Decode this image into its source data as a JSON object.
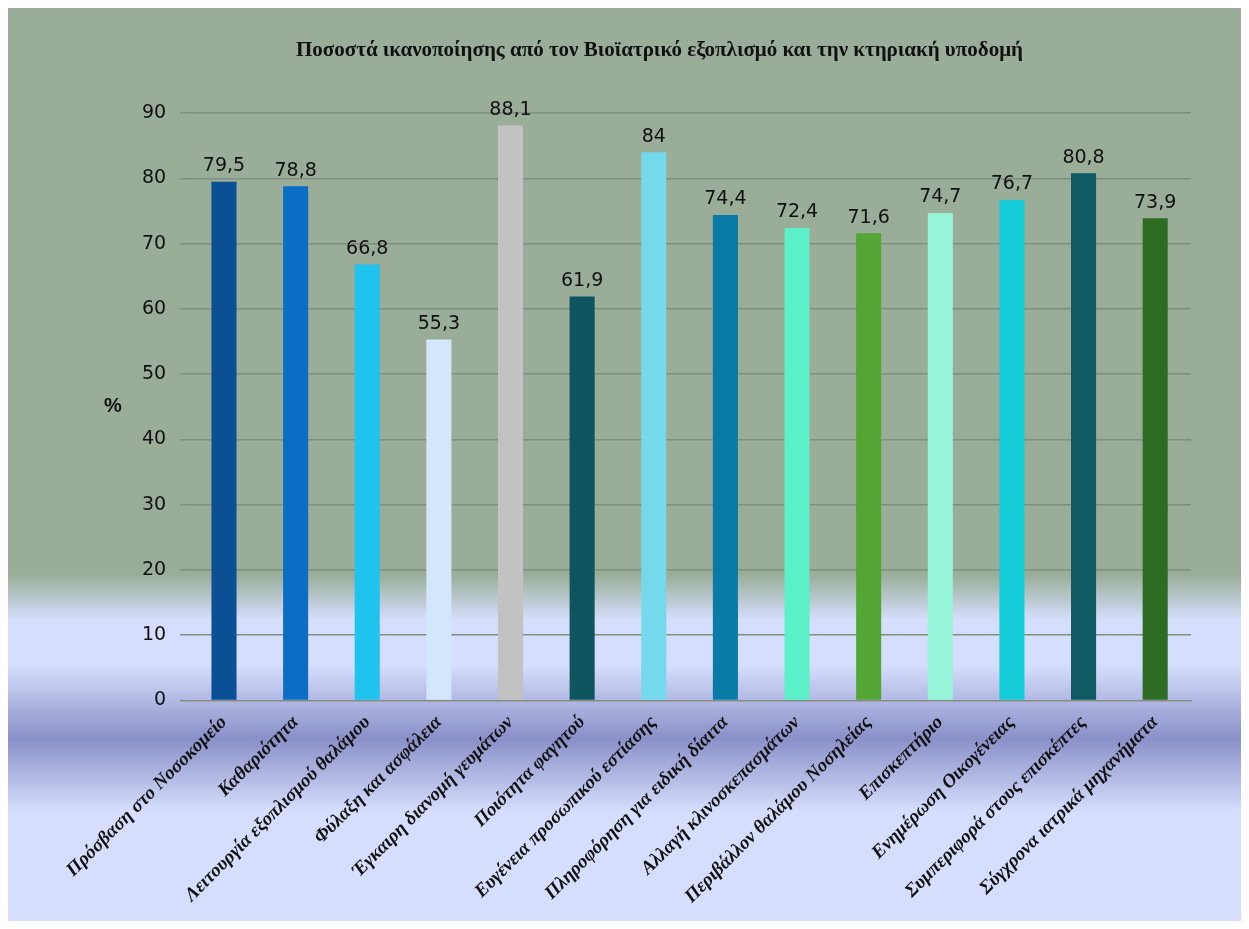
{
  "chart_data": {
    "type": "bar",
    "title": "Ποσοστά ικανοποίησης από τον Βιοϊατρικό εξοπλισμό και την κτηριακή υποδομή",
    "ylabel": "%",
    "categories": [
      "Πρόσβαση στο Νοσοκομείο",
      "Καθαριότητα",
      "Λειτουργία εξοπλισμού θαλάμου",
      "Φύλαξη και ασφάλεια",
      "Έγκαιρη διανομή γευμάτων",
      "Ποιότητα φαγητού",
      "Ευγένεια προσωπικού εστίασης",
      "Πληροφόρηση για ειδική δίαιτα",
      "Αλλαγή κλινοσκεπασμάτων",
      "Περιβάλλον θαλάμου Νοσηλείας",
      "Επισκεπτήριο",
      "Ενημέρωση Οικογένειας",
      "Συμπεριφορά στους επισκέπτες",
      "Σύγχρονα ιατρικά μηχανήματα"
    ],
    "values": [
      79.5,
      78.8,
      66.8,
      55.3,
      88.1,
      61.9,
      84,
      74.4,
      72.4,
      71.6,
      74.7,
      76.7,
      80.8,
      73.9
    ],
    "value_labels": [
      "79,5",
      "78,8",
      "66,8",
      "55,3",
      "88,1",
      "61,9",
      "84",
      "74,4",
      "72,4",
      "71,6",
      "74,7",
      "76,7",
      "80,8",
      "73,9"
    ],
    "colors": [
      "#0b4f94",
      "#0a6fc4",
      "#1fc3ee",
      "#d3e6fb",
      "#c2c2c2",
      "#0f5560",
      "#74d9ea",
      "#0a7aa6",
      "#5cf0c8",
      "#53a634",
      "#95f4d8",
      "#14cdd8",
      "#0f5963",
      "#2e6c24"
    ],
    "ylim": [
      0,
      90
    ],
    "yticks": [
      0,
      10,
      20,
      30,
      40,
      50,
      60,
      70,
      80,
      90
    ],
    "grid": "y",
    "legend": false
  }
}
